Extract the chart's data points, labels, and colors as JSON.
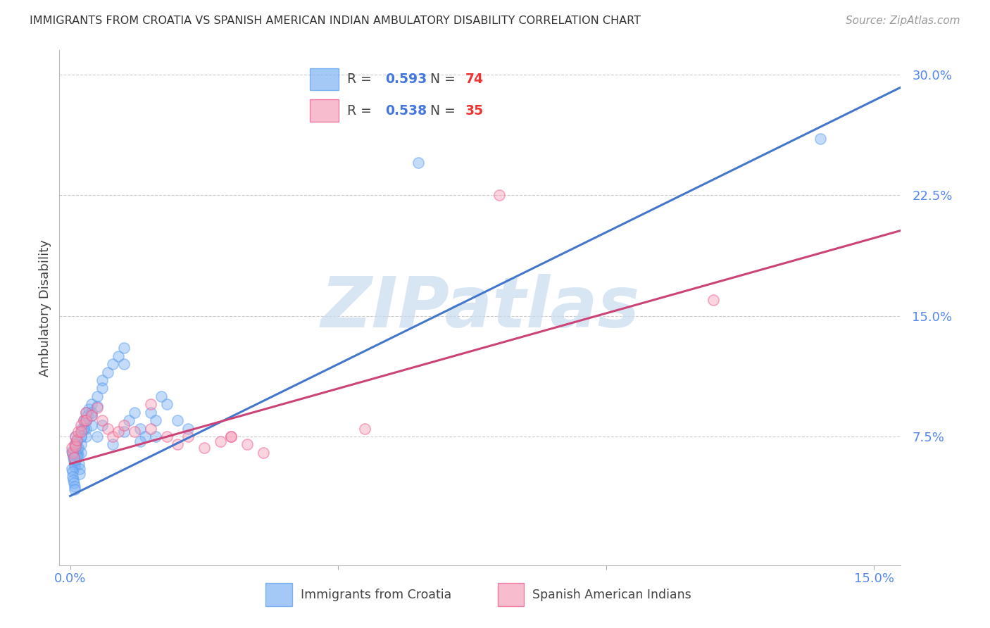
{
  "title": "IMMIGRANTS FROM CROATIA VS SPANISH AMERICAN INDIAN AMBULATORY DISABILITY CORRELATION CHART",
  "source": "Source: ZipAtlas.com",
  "ylabel": "Ambulatory Disability",
  "xlim": [
    -0.002,
    0.155
  ],
  "ylim": [
    -0.005,
    0.315
  ],
  "xtick_positions": [
    0.0,
    0.05,
    0.1,
    0.15
  ],
  "xtick_labels": [
    "0.0%",
    "",
    "",
    "15.0%"
  ],
  "ytick_positions": [
    0.075,
    0.15,
    0.225,
    0.3
  ],
  "ytick_labels": [
    "7.5%",
    "15.0%",
    "22.5%",
    "30.0%"
  ],
  "grid_color": "#cccccc",
  "background_color": "#ffffff",
  "blue_color": "#7EB3F5",
  "blue_edge_color": "#5599EE",
  "pink_color": "#F5A0B8",
  "pink_edge_color": "#EE5588",
  "blue_line_color": "#4477CC",
  "pink_line_color": "#CC4477",
  "blue_line_x0": 0.0,
  "blue_line_y0": 0.038,
  "blue_line_x1": 0.155,
  "blue_line_y1": 0.292,
  "pink_line_x0": 0.0,
  "pink_line_y0": 0.058,
  "pink_line_x1": 0.155,
  "pink_line_y1": 0.203,
  "watermark_text": "ZIPatlas",
  "watermark_color": "#C8DCF0",
  "legend_label_blue": "Immigrants from Croatia",
  "legend_label_pink": "Spanish American Indians",
  "marker_size": 120,
  "marker_alpha": 0.45,
  "blue_x": [
    0.0003,
    0.0005,
    0.0006,
    0.0007,
    0.0008,
    0.0009,
    0.001,
    0.001,
    0.001,
    0.0012,
    0.0013,
    0.0014,
    0.0015,
    0.0016,
    0.0017,
    0.0018,
    0.002,
    0.002,
    0.002,
    0.0022,
    0.0025,
    0.0025,
    0.003,
    0.003,
    0.003,
    0.003,
    0.0032,
    0.0035,
    0.004,
    0.004,
    0.004,
    0.005,
    0.005,
    0.006,
    0.006,
    0.007,
    0.008,
    0.009,
    0.01,
    0.01,
    0.011,
    0.012,
    0.013,
    0.014,
    0.015,
    0.016,
    0.017,
    0.018,
    0.02,
    0.022,
    0.0003,
    0.0004,
    0.0005,
    0.0006,
    0.0007,
    0.0008,
    0.0009,
    0.001,
    0.001,
    0.001,
    0.0012,
    0.0015,
    0.002,
    0.0025,
    0.003,
    0.004,
    0.005,
    0.006,
    0.008,
    0.01,
    0.013,
    0.016,
    0.065,
    0.14
  ],
  "blue_y": [
    0.066,
    0.064,
    0.062,
    0.06,
    0.058,
    0.056,
    0.07,
    0.065,
    0.06,
    0.068,
    0.072,
    0.065,
    0.063,
    0.058,
    0.055,
    0.052,
    0.075,
    0.07,
    0.065,
    0.08,
    0.085,
    0.08,
    0.09,
    0.085,
    0.08,
    0.075,
    0.088,
    0.092,
    0.095,
    0.088,
    0.082,
    0.1,
    0.094,
    0.11,
    0.105,
    0.115,
    0.12,
    0.125,
    0.13,
    0.12,
    0.085,
    0.09,
    0.08,
    0.075,
    0.09,
    0.085,
    0.1,
    0.095,
    0.085,
    0.08,
    0.055,
    0.053,
    0.05,
    0.048,
    0.046,
    0.044,
    0.042,
    0.075,
    0.07,
    0.065,
    0.063,
    0.068,
    0.075,
    0.08,
    0.085,
    0.09,
    0.075,
    0.082,
    0.07,
    0.078,
    0.072,
    0.075,
    0.245,
    0.26
  ],
  "pink_x": [
    0.0003,
    0.0005,
    0.0007,
    0.0009,
    0.001,
    0.001,
    0.0012,
    0.0015,
    0.002,
    0.002,
    0.0025,
    0.003,
    0.003,
    0.004,
    0.005,
    0.006,
    0.007,
    0.008,
    0.009,
    0.01,
    0.012,
    0.015,
    0.018,
    0.02,
    0.022,
    0.025,
    0.028,
    0.03,
    0.033,
    0.036,
    0.015,
    0.03,
    0.055,
    0.08,
    0.12
  ],
  "pink_y": [
    0.068,
    0.065,
    0.062,
    0.07,
    0.075,
    0.069,
    0.073,
    0.078,
    0.082,
    0.078,
    0.085,
    0.09,
    0.085,
    0.088,
    0.093,
    0.085,
    0.08,
    0.075,
    0.078,
    0.082,
    0.078,
    0.08,
    0.075,
    0.07,
    0.075,
    0.068,
    0.072,
    0.075,
    0.07,
    0.065,
    0.095,
    0.075,
    0.08,
    0.225,
    0.16
  ]
}
